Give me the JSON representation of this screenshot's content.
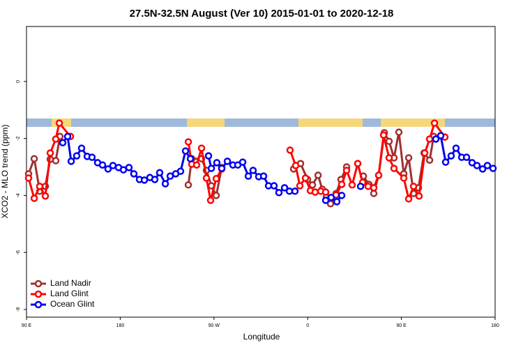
{
  "chart_data": {
    "type": "line",
    "title": "27.5N-32.5N August (Ver 10)   2015-01-01 to 2020-12-18",
    "xlabel": "Longitude",
    "ylabel": "XCO2 - MLO trend (ppm)",
    "xlim": [
      90,
      540
    ],
    "ylim": [
      -8.27,
      1.93
    ],
    "xticks": [
      {
        "value": 90,
        "label": "90 E"
      },
      180,
      {
        "value": 270,
        "label": "90 W"
      },
      {
        "value": 360,
        "label": "0"
      },
      {
        "value": 450,
        "label": "90 E"
      },
      180
    ],
    "yticks": [
      -8,
      -6,
      -4,
      -2,
      0
    ],
    "legend": "bottomleft",
    "series": [
      {
        "name": "Land Nadir",
        "color": "#a03030",
        "x": [
          92,
          97.4,
          102.7,
          108.1,
          112.8,
          118.1,
          122.1,
          null,
          245.4,
          248.7,
          258.1,
          262.8,
          267.5,
          272.2,
          277.5,
          null,
          346.5,
          353.2,
          359.9,
          364.6,
          370,
          374,
          378,
          382,
          387.3,
          392,
          397.4,
          null,
          413.5,
          418.8,
          423.5,
          428.2,
          433.6,
          438.2,
          442.9,
          447.6,
          452.3,
          457,
          461.7,
          466.4,
          471.8,
          477.1,
          481.1
        ],
        "values": [
          -3.24,
          -2.71,
          -3.85,
          -3.68,
          -2.73,
          -2.78,
          -1.93,
          null,
          -3.63,
          -2.71,
          -2.71,
          -3.12,
          -3.66,
          -4.0,
          -3.02,
          null,
          -3.07,
          -2.88,
          -3.44,
          -3.63,
          -3.29,
          -3.78,
          -4.05,
          -4.29,
          -3.93,
          -3.44,
          -3.0,
          null,
          -3.32,
          -3.61,
          -3.93,
          -3.29,
          -1.8,
          -2.1,
          -2.68,
          -1.78,
          -3.24,
          -2.68,
          -3.93,
          -3.73,
          -2.51,
          -2.76,
          -1.93
        ]
      },
      {
        "name": "Land Glint",
        "color": "#ff0000",
        "x": [
          92,
          97.4,
          102.7,
          108.1,
          112.8,
          118.1,
          121.5,
          132.2,
          null,
          245.4,
          248.7,
          253.4,
          258.1,
          262.8,
          266.8,
          272.2,
          277.5,
          null,
          343.1,
          348.5,
          352.5,
          357.9,
          362.6,
          367.2,
          372.6,
          377.3,
          382,
          387.3,
          392.7,
          397.4,
          402.7,
          408.1,
          412.8,
          418.1,
          423.5,
          428.2,
          432.9,
          438.2,
          442.9,
          452.3,
          457,
          461.7,
          467,
          472.4,
          477.1,
          481.8,
          491.8
        ],
        "values": [
          -3.39,
          -4.1,
          -3.68,
          -4.02,
          -2.51,
          -2.02,
          -1.46,
          -1.93,
          null,
          -2.12,
          -2.9,
          -2.93,
          -2.34,
          -3.39,
          -4.17,
          -3.41,
          -3.07,
          null,
          -2.41,
          -2.95,
          -3.66,
          -3.39,
          -3.83,
          -3.88,
          -3.85,
          -3.88,
          -4.1,
          -3.98,
          -3.61,
          -3.12,
          -3.63,
          -2.88,
          -3.54,
          -3.68,
          -3.73,
          -3.29,
          -1.88,
          -2.68,
          -3.05,
          -3.39,
          -4.12,
          -3.68,
          -4.02,
          -2.51,
          -2.02,
          -1.46,
          -1.95
        ]
      },
      {
        "name": "Ocean Glint",
        "color": "#0000ee",
        "x": [
          124.8,
          129.5,
          132.9,
          138.2,
          142.9,
          148.3,
          152.9,
          158.3,
          163,
          168.3,
          173,
          178.4,
          183.1,
          188.4,
          193.1,
          198.5,
          203.2,
          208.5,
          213.2,
          217.9,
          223.3,
          228,
          233.3,
          238,
          242.7,
          247.4,
          null,
          264.8,
          267.5,
          272.8,
          277.5,
          282.9,
          288.2,
          292.9,
          297.6,
          303,
          307.6,
          313,
          317.7,
          322.4,
          327.7,
          332.4,
          337.8,
          342.5,
          347.8,
          null,
          377.3,
          382.6,
          388,
          392.7,
          null,
          410.8,
          null,
          483.1,
          487.8,
          492.5,
          497.8,
          502.5,
          507.9,
          512.6,
          517.9,
          522.6,
          528,
          532.6,
          538
        ],
        "values": [
          -2.15,
          -1.93,
          -2.8,
          -2.61,
          -2.34,
          -2.63,
          -2.66,
          -2.85,
          -2.93,
          -3.07,
          -2.95,
          -3.02,
          -3.1,
          -3.02,
          -3.24,
          -3.44,
          -3.46,
          -3.37,
          -3.44,
          -3.2,
          -3.59,
          -3.32,
          -3.24,
          -3.15,
          -2.44,
          -2.71,
          null,
          -2.61,
          -3.05,
          -2.85,
          -3.05,
          -2.8,
          -2.93,
          -2.93,
          -2.83,
          -3.32,
          -3.12,
          -3.34,
          -3.32,
          -3.66,
          -3.66,
          -3.9,
          -3.73,
          -3.85,
          -3.85,
          null,
          -4.17,
          -4.07,
          -4.22,
          -4.0,
          null,
          -3.68,
          null,
          -2.02,
          -1.9,
          -2.83,
          -2.61,
          -2.34,
          -2.66,
          -2.66,
          -2.85,
          -2.95,
          -3.07,
          -2.95,
          -3.05
        ]
      }
    ]
  }
}
